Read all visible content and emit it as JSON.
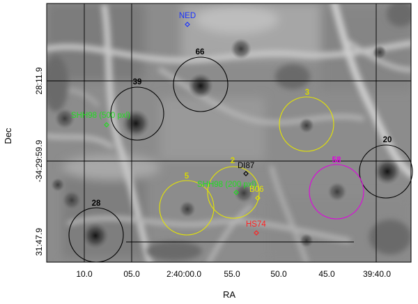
{
  "axes": {
    "xlabel": "RA",
    "ylabel": "Dec",
    "x_ticks": [
      "10.0",
      "05.0",
      "2:40:00.0",
      "55.0",
      "50.0",
      "45.0",
      "39:40.0"
    ],
    "y_ticks": [
      "31:47.9",
      "-34:29:59.9",
      "28:11.9"
    ]
  },
  "markers": [
    {
      "label": "NED",
      "color": "#1a33ff"
    },
    {
      "label": "SHH98 (500 pxl)",
      "color": "#22dd22"
    },
    {
      "label": "SHH98 (200 pxl)",
      "color": "#22dd22"
    },
    {
      "label": "DI87",
      "color": "#000000"
    },
    {
      "label": "B06",
      "color": "#e6e600"
    },
    {
      "label": "HS74",
      "color": "#ff2222"
    }
  ],
  "circles": [
    {
      "label": "66",
      "color": "#000000"
    },
    {
      "label": "39",
      "color": "#000000"
    },
    {
      "label": "3",
      "color": "#e6e600"
    },
    {
      "label": "20",
      "color": "#000000"
    },
    {
      "label": "2",
      "color": "#e6e600"
    },
    {
      "label": "58",
      "color": "#e000e0"
    },
    {
      "label": "5",
      "color": "#e6e600"
    },
    {
      "label": "28",
      "color": "#000000"
    }
  ]
}
